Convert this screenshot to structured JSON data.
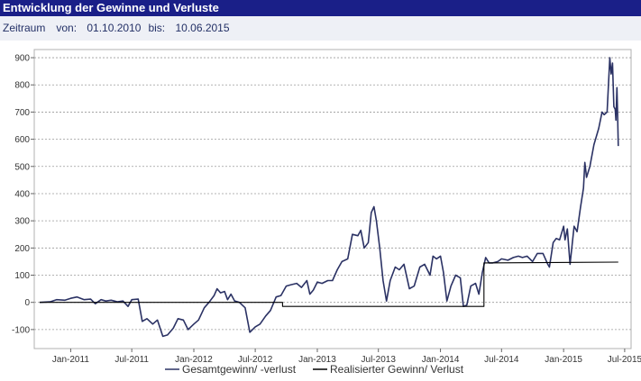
{
  "header": {
    "title": "Entwicklung der Gewinne und Verluste"
  },
  "range": {
    "label": "Zeitraum",
    "from_label": "von:",
    "from_value": "01.10.2010",
    "to_label": "bis:",
    "to_value": "10.06.2015"
  },
  "colors": {
    "header_bg": "#1a1f88",
    "range_bg": "#eef0f6",
    "series_total": "#2b3264",
    "series_realized": "#000000"
  },
  "chart_data": {
    "type": "line",
    "title": "",
    "xlabel": "",
    "ylabel": "",
    "ylim": [
      -170,
      930
    ],
    "xlim": [
      "2010-09-15",
      "2015-07-20"
    ],
    "yticks": [
      -100,
      0,
      100,
      200,
      300,
      400,
      500,
      600,
      700,
      800,
      900
    ],
    "xtick_labels": [
      "Jan-2011",
      "Jul-2011",
      "Jan-2012",
      "Jul-2012",
      "Jan-2013",
      "Jul-2013",
      "Jan-2014",
      "Jul-2014",
      "Jan-2015",
      "Jul-2015"
    ],
    "xtick_dates": [
      "2011-01-01",
      "2011-07-01",
      "2012-01-01",
      "2012-07-01",
      "2013-01-01",
      "2013-07-01",
      "2014-01-01",
      "2014-07-01",
      "2015-01-01",
      "2015-07-01"
    ],
    "grid": "horizontal dashed",
    "legend_position": "bottom",
    "series": [
      {
        "name": "Gesamtgewinn/ -verlust",
        "points": [
          [
            "2010-10-01",
            0
          ],
          [
            "2010-11-01",
            2
          ],
          [
            "2010-11-20",
            10
          ],
          [
            "2010-12-15",
            8
          ],
          [
            "2011-01-01",
            15
          ],
          [
            "2011-01-20",
            20
          ],
          [
            "2011-02-10",
            10
          ],
          [
            "2011-03-01",
            12
          ],
          [
            "2011-03-15",
            -5
          ],
          [
            "2011-04-01",
            10
          ],
          [
            "2011-04-15",
            5
          ],
          [
            "2011-05-01",
            8
          ],
          [
            "2011-05-20",
            2
          ],
          [
            "2011-06-05",
            5
          ],
          [
            "2011-06-20",
            -15
          ],
          [
            "2011-07-01",
            10
          ],
          [
            "2011-07-20",
            12
          ],
          [
            "2011-08-01",
            -70
          ],
          [
            "2011-08-15",
            -60
          ],
          [
            "2011-09-01",
            -80
          ],
          [
            "2011-09-15",
            -65
          ],
          [
            "2011-10-01",
            -125
          ],
          [
            "2011-10-15",
            -120
          ],
          [
            "2011-11-01",
            -95
          ],
          [
            "2011-11-15",
            -60
          ],
          [
            "2011-12-01",
            -65
          ],
          [
            "2011-12-15",
            -100
          ],
          [
            "2012-01-01",
            -80
          ],
          [
            "2012-01-15",
            -65
          ],
          [
            "2012-02-01",
            -20
          ],
          [
            "2012-02-15",
            0
          ],
          [
            "2012-03-01",
            25
          ],
          [
            "2012-03-10",
            50
          ],
          [
            "2012-03-20",
            35
          ],
          [
            "2012-04-01",
            40
          ],
          [
            "2012-04-10",
            10
          ],
          [
            "2012-04-20",
            30
          ],
          [
            "2012-05-01",
            5
          ],
          [
            "2012-05-15",
            0
          ],
          [
            "2012-06-01",
            -20
          ],
          [
            "2012-06-15",
            -110
          ],
          [
            "2012-07-01",
            -90
          ],
          [
            "2012-07-15",
            -80
          ],
          [
            "2012-08-01",
            -50
          ],
          [
            "2012-08-15",
            -30
          ],
          [
            "2012-09-01",
            20
          ],
          [
            "2012-09-15",
            25
          ],
          [
            "2012-10-01",
            60
          ],
          [
            "2012-10-15",
            65
          ],
          [
            "2012-11-01",
            70
          ],
          [
            "2012-11-15",
            55
          ],
          [
            "2012-12-01",
            80
          ],
          [
            "2012-12-10",
            30
          ],
          [
            "2012-12-20",
            45
          ],
          [
            "2013-01-01",
            75
          ],
          [
            "2013-01-15",
            70
          ],
          [
            "2013-02-01",
            80
          ],
          [
            "2013-02-15",
            80
          ],
          [
            "2013-03-01",
            120
          ],
          [
            "2013-03-15",
            150
          ],
          [
            "2013-04-01",
            160
          ],
          [
            "2013-04-15",
            250
          ],
          [
            "2013-05-01",
            245
          ],
          [
            "2013-05-10",
            265
          ],
          [
            "2013-05-20",
            200
          ],
          [
            "2013-06-01",
            220
          ],
          [
            "2013-06-10",
            330
          ],
          [
            "2013-06-18",
            352
          ],
          [
            "2013-06-25",
            300
          ],
          [
            "2013-07-05",
            200
          ],
          [
            "2013-07-15",
            80
          ],
          [
            "2013-07-25",
            5
          ],
          [
            "2013-08-05",
            80
          ],
          [
            "2013-08-20",
            130
          ],
          [
            "2013-09-01",
            120
          ],
          [
            "2013-09-15",
            140
          ],
          [
            "2013-10-01",
            50
          ],
          [
            "2013-10-15",
            60
          ],
          [
            "2013-11-01",
            130
          ],
          [
            "2013-11-15",
            140
          ],
          [
            "2013-12-01",
            100
          ],
          [
            "2013-12-10",
            170
          ],
          [
            "2013-12-20",
            160
          ],
          [
            "2014-01-01",
            170
          ],
          [
            "2014-01-10",
            110
          ],
          [
            "2014-01-20",
            5
          ],
          [
            "2014-02-01",
            60
          ],
          [
            "2014-02-15",
            100
          ],
          [
            "2014-03-01",
            90
          ],
          [
            "2014-03-10",
            -15
          ],
          [
            "2014-03-20",
            -10
          ],
          [
            "2014-04-01",
            60
          ],
          [
            "2014-04-15",
            70
          ],
          [
            "2014-04-25",
            30
          ],
          [
            "2014-05-05",
            110
          ],
          [
            "2014-05-15",
            165
          ],
          [
            "2014-05-25",
            145
          ],
          [
            "2014-06-05",
            145
          ],
          [
            "2014-06-20",
            150
          ],
          [
            "2014-07-01",
            160
          ],
          [
            "2014-07-20",
            155
          ],
          [
            "2014-08-05",
            165
          ],
          [
            "2014-08-20",
            170
          ],
          [
            "2014-09-01",
            165
          ],
          [
            "2014-09-15",
            170
          ],
          [
            "2014-10-01",
            150
          ],
          [
            "2014-10-15",
            180
          ],
          [
            "2014-11-01",
            180
          ],
          [
            "2014-11-15",
            140
          ],
          [
            "2014-11-20",
            130
          ],
          [
            "2014-12-01",
            220
          ],
          [
            "2014-12-10",
            235
          ],
          [
            "2014-12-20",
            230
          ],
          [
            "2015-01-01",
            280
          ],
          [
            "2015-01-05",
            230
          ],
          [
            "2015-01-12",
            270
          ],
          [
            "2015-01-20",
            140
          ],
          [
            "2015-02-01",
            280
          ],
          [
            "2015-02-10",
            260
          ],
          [
            "2015-02-20",
            350
          ],
          [
            "2015-03-01",
            420
          ],
          [
            "2015-03-05",
            515
          ],
          [
            "2015-03-10",
            460
          ],
          [
            "2015-03-20",
            500
          ],
          [
            "2015-04-01",
            580
          ],
          [
            "2015-04-15",
            640
          ],
          [
            "2015-04-25",
            700
          ],
          [
            "2015-05-01",
            690
          ],
          [
            "2015-05-10",
            700
          ],
          [
            "2015-05-18",
            900
          ],
          [
            "2015-05-22",
            840
          ],
          [
            "2015-05-26",
            880
          ],
          [
            "2015-05-30",
            720
          ],
          [
            "2015-06-03",
            710
          ],
          [
            "2015-06-05",
            670
          ],
          [
            "2015-06-08",
            790
          ],
          [
            "2015-06-10",
            700
          ],
          [
            "2015-06-12",
            575
          ]
        ]
      },
      {
        "name": "Realisierter Gewinn/ Verlust",
        "points": [
          [
            "2010-10-01",
            0
          ],
          [
            "2012-09-20",
            0
          ],
          [
            "2012-09-20",
            -15
          ],
          [
            "2014-05-10",
            -15
          ],
          [
            "2014-05-10",
            145
          ],
          [
            "2015-06-12",
            148
          ]
        ]
      }
    ]
  }
}
